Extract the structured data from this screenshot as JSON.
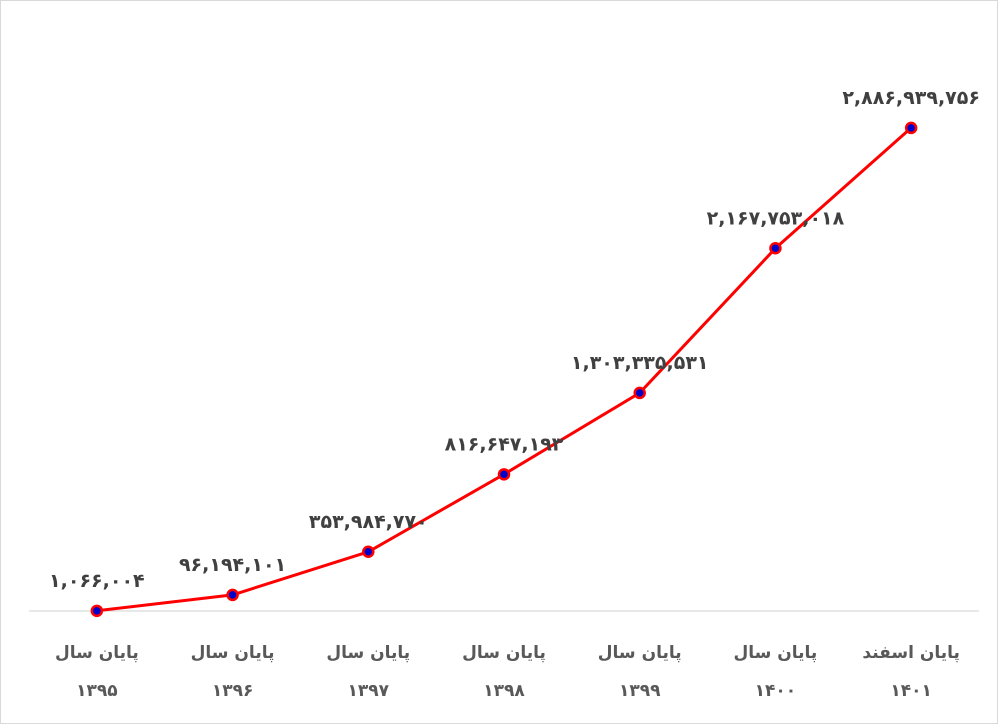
{
  "chart_data": {
    "type": "line",
    "categories": [
      [
        "پایان سال",
        "۱۳۹۵"
      ],
      [
        "پایان سال",
        "۱۳۹۶"
      ],
      [
        "پایان سال",
        "۱۳۹۷"
      ],
      [
        "پایان سال",
        "۱۳۹۸"
      ],
      [
        "پایان سال",
        "۱۳۹۹"
      ],
      [
        "پایان سال",
        "۱۴۰۰"
      ],
      [
        "پایان اسفند",
        "۱۴۰۱"
      ]
    ],
    "values": [
      1066004,
      96194101,
      353984770,
      816647193,
      1303335531,
      2167753018,
      2886939756
    ],
    "data_labels": [
      "۱,۰۶۶,۰۰۴",
      "۹۶,۱۹۴,۱۰۱",
      "۳۵۳,۹۸۴,۷۷۰",
      "۸۱۶,۶۴۷,۱۹۳",
      "۱,۳۰۳,۳۳۵,۵۳۱",
      "۲,۱۶۷,۷۵۳,۰۱۸",
      "۲,۸۸۶,۹۳۹,۷۵۶"
    ],
    "title": "",
    "xlabel": "",
    "ylabel": "",
    "ylim": [
      0,
      3000000000
    ],
    "grid": false,
    "legend": "none",
    "line_color": "#ff0000",
    "marker_fill": "#0000cc",
    "marker_edge": "#ff0000",
    "axis_color": "#d9d9d9"
  }
}
